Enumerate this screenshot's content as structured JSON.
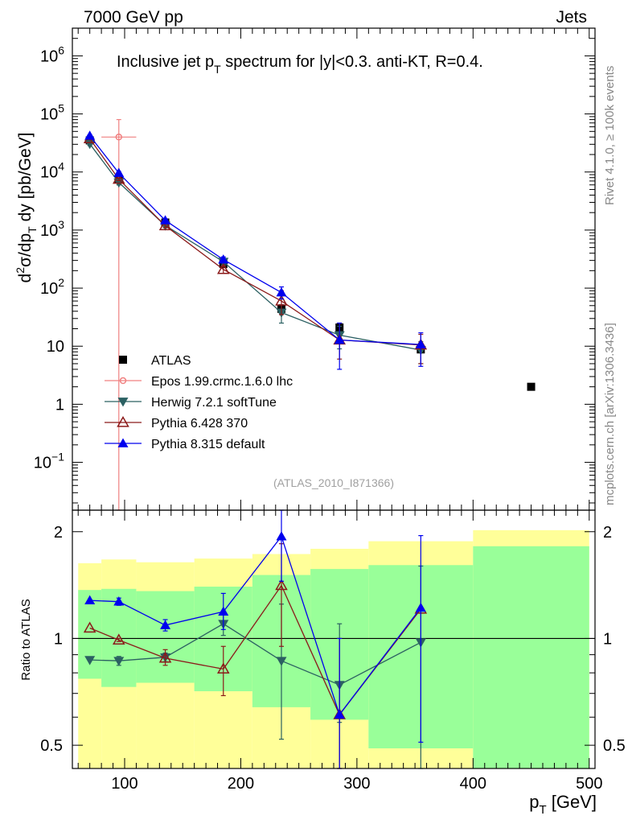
{
  "header": {
    "left": "7000 GeV pp",
    "right": "Jets",
    "title_main": "Inclusive jet p",
    "title_sub": "T",
    "title_rest": " spectrum for |y|<0.3.  anti-KT, R=0.4.",
    "watermark": "(ATLAS_2010_I871366)",
    "side_top": "Rivet 4.1.0, ≥ 100k events",
    "side_bottom": "mcplots.cern.ch [arXiv:1306.3436]"
  },
  "chart_data": [
    {
      "type": "scatter",
      "panel": "main",
      "scale": "log",
      "ylabel": "d²σ/dp_T dy [pb/GeV]",
      "ylim": [
        0.015,
        3000000
      ],
      "xlim": [
        55,
        505
      ],
      "yticks": [
        {
          "v": 0.1,
          "base": "10",
          "exp": "−1"
        },
        {
          "v": 1,
          "base": "1",
          "exp": ""
        },
        {
          "v": 10,
          "base": "10",
          "exp": ""
        },
        {
          "v": 100,
          "base": "10",
          "exp": "2"
        },
        {
          "v": 1000,
          "base": "10",
          "exp": "3"
        },
        {
          "v": 10000,
          "base": "10",
          "exp": "4"
        },
        {
          "v": 100000,
          "base": "10",
          "exp": "5"
        },
        {
          "v": 1000000,
          "base": "10",
          "exp": "6"
        }
      ],
      "series": [
        {
          "name": "ATLAS",
          "color": "#000000",
          "marker": "square",
          "x": [
            70,
            95,
            135,
            185,
            235,
            285,
            355,
            450
          ],
          "y": [
            35000,
            7600,
            1350,
            260,
            44,
            21,
            8.8,
            2.0
          ]
        },
        {
          "name": "Epos 1.99.crmc.1.6.0 lhc",
          "color": "#f08080",
          "marker": "open-circle",
          "x": [
            95
          ],
          "y": [
            40000
          ],
          "yerr_lo": [
            0.015
          ],
          "yerr_hi": [
            80000
          ],
          "xerr": [
            15
          ]
        },
        {
          "name": "Herwig 7.2.1 softTune",
          "color": "#2b6062",
          "marker": "down-triangle",
          "x": [
            70,
            95,
            135,
            185,
            235,
            285,
            355
          ],
          "y": [
            30500,
            6600,
            1200,
            285,
            38,
            15.5,
            8.6
          ],
          "yerr_lo": [
            28500,
            6000,
            1100,
            250,
            25,
            9,
            5
          ],
          "yerr_hi": [
            32500,
            7200,
            1300,
            320,
            52,
            22,
            12
          ]
        },
        {
          "name": "Pythia 6.428 370",
          "color": "#8b1a1a",
          "marker": "open-triangle",
          "x": [
            70,
            95,
            135,
            185,
            235,
            285,
            355
          ],
          "y": [
            37500,
            7500,
            1190,
            210,
            60,
            12.8,
            10.5
          ],
          "yerr_lo": [
            36000,
            7100,
            1100,
            180,
            35,
            6,
            5
          ],
          "yerr_hi": [
            39000,
            7900,
            1280,
            240,
            90,
            25,
            16
          ]
        },
        {
          "name": "Pythia 8.315 default",
          "color": "#0000ee",
          "marker": "up-triangle",
          "x": [
            70,
            95,
            135,
            185,
            235,
            285,
            355
          ],
          "y": [
            42000,
            9600,
            1470,
            310,
            84,
            12.8,
            10.7
          ],
          "yerr_lo": [
            40500,
            9100,
            1380,
            275,
            65,
            4,
            4.5
          ],
          "yerr_hi": [
            43500,
            10100,
            1560,
            345,
            105,
            25,
            17
          ]
        }
      ]
    },
    {
      "type": "scatter",
      "panel": "ratio",
      "scale": "log",
      "ylabel": "Ratio to ATLAS",
      "xlabel_main": "p",
      "xlabel_sub": "T",
      "xlabel_rest": " [GeV]",
      "ylim": [
        0.43,
        2.3
      ],
      "yticks": [
        {
          "v": 0.5,
          "label": "0.5"
        },
        {
          "v": 1,
          "label": "1"
        },
        {
          "v": 2,
          "label": "2"
        }
      ],
      "xticks": [
        100,
        200,
        300,
        400,
        500
      ],
      "bands": {
        "edges": [
          60,
          80,
          110,
          160,
          210,
          260,
          310,
          400,
          500
        ],
        "yellow_lo": [
          0.42,
          0.38,
          0.36,
          0.36,
          0.36,
          0.36,
          0.36,
          0.36
        ],
        "yellow_hi": [
          1.63,
          1.67,
          1.64,
          1.68,
          1.73,
          1.79,
          1.88,
          2.02
        ],
        "green_lo": [
          0.77,
          0.73,
          0.75,
          0.71,
          0.64,
          0.59,
          0.49,
          0.36
        ],
        "green_hi": [
          1.37,
          1.38,
          1.36,
          1.4,
          1.51,
          1.57,
          1.61,
          1.82
        ]
      },
      "series": [
        {
          "name": "Herwig 7.2.1 softTune",
          "color": "#2b6062",
          "marker": "down-triangle",
          "x": [
            70,
            95,
            135,
            185,
            235,
            285,
            355
          ],
          "y": [
            0.87,
            0.865,
            0.885,
            1.1,
            0.865,
            0.74,
            0.975
          ],
          "yerr_lo": [
            0.87,
            0.84,
            0.86,
            1.02,
            0.52,
            0.58,
            0.36
          ],
          "yerr_hi": [
            0.87,
            0.89,
            0.91,
            1.18,
            1.25,
            1.1,
            1.6
          ]
        },
        {
          "name": "Pythia 6.428 370",
          "color": "#8b1a1a",
          "marker": "open-triangle",
          "x": [
            70,
            95,
            135,
            185,
            235,
            285,
            355
          ],
          "y": [
            1.07,
            0.99,
            0.88,
            0.82,
            1.41,
            0.61,
            1.21
          ],
          "yerr_lo": [
            1.07,
            0.98,
            0.84,
            0.69,
            0.95,
            0.43,
            1.21
          ],
          "yerr_hi": [
            1.07,
            1.0,
            0.93,
            0.95,
            1.85,
            1.0,
            1.21
          ]
        },
        {
          "name": "Pythia 8.315 default",
          "color": "#0000ee",
          "marker": "up-triangle",
          "x": [
            70,
            95,
            135,
            185,
            235,
            285,
            355
          ],
          "y": [
            1.28,
            1.27,
            1.09,
            1.19,
            1.94,
            0.61,
            1.22
          ],
          "yerr_lo": [
            1.28,
            1.24,
            1.05,
            1.06,
            1.45,
            0.43,
            0.51
          ],
          "yerr_hi": [
            1.28,
            1.3,
            1.13,
            1.34,
            2.35,
            1.0,
            1.95
          ]
        }
      ]
    }
  ]
}
